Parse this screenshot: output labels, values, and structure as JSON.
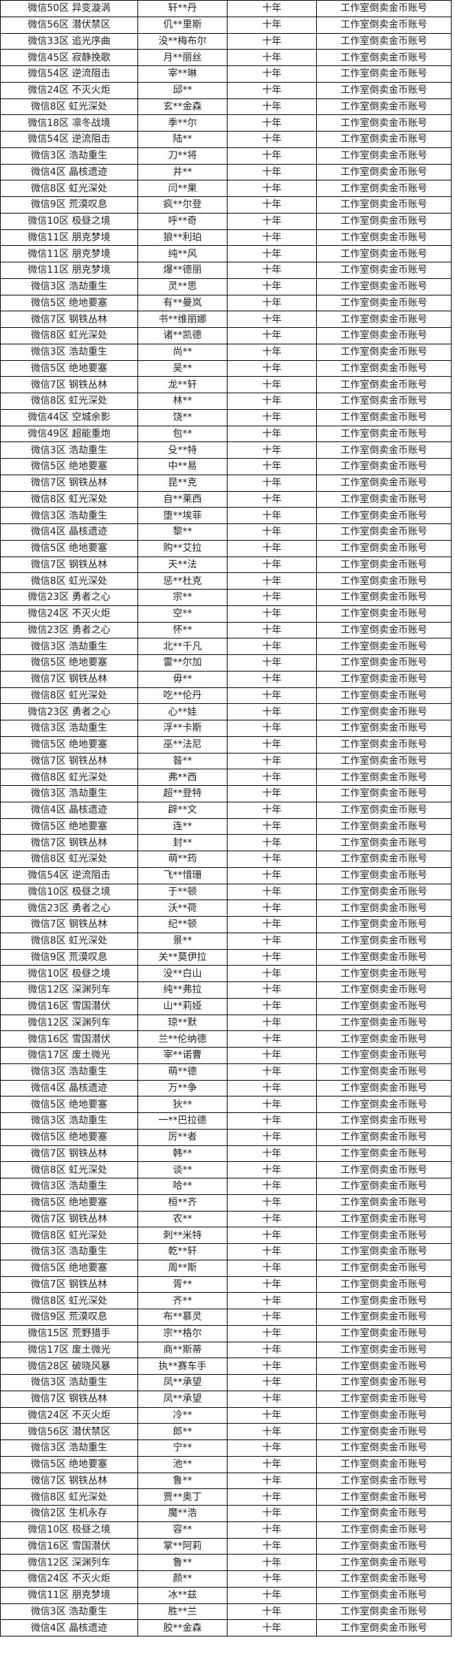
{
  "columns_defaults": {
    "duration": "十年",
    "reason": "工作室倒卖金币账号"
  },
  "rows": [
    [
      "微信50区 异变漩涡",
      "轩**丹"
    ],
    [
      "微信56区 潜伏禁区",
      "仉**里斯"
    ],
    [
      "微信33区 追光序曲",
      "没**梅布尔"
    ],
    [
      "微信45区 寂静挽歌",
      "月**丽丝"
    ],
    [
      "微信54区 逆流阻击",
      "宰**琳"
    ],
    [
      "微信24区 不灭火炬",
      "邱**"
    ],
    [
      "微信8区 虹光深处",
      "玄**金森"
    ],
    [
      "微信18区 凛冬战境",
      "季**尔"
    ],
    [
      "微信54区 逆流阻击",
      "陆**"
    ],
    [
      "微信3区 浩劫重生",
      "刀**将"
    ],
    [
      "微信4区 晶核遗迹",
      "井**"
    ],
    [
      "微信8区 虹光深处",
      "闫**果"
    ],
    [
      "微信9区 荒漠叹息",
      "疯**尔登"
    ],
    [
      "微信10区 极昼之境",
      "呼**奇"
    ],
    [
      "微信11区 朋克梦境",
      "狼**利珀"
    ],
    [
      "微信11区 朋克梦境",
      "纯**风"
    ],
    [
      "微信11区 朋克梦境",
      "爆**德丽"
    ],
    [
      "微信3区 浩劫重生",
      "灵**思"
    ],
    [
      "微信5区 绝地要塞",
      "有**曼岚"
    ],
    [
      "微信7区 钢铁丛林",
      "书**维丽娜"
    ],
    [
      "微信8区 虹光深处",
      "诸**凯德"
    ],
    [
      "微信3区 浩劫重生",
      "尚**"
    ],
    [
      "微信5区 绝地要塞",
      "吴**"
    ],
    [
      "微信7区 钢铁丛林",
      "龙**轩"
    ],
    [
      "微信8区 虹光深处",
      "林**"
    ],
    [
      "微信44区 空城余影",
      "饶**"
    ],
    [
      "微信49区 超能重炮",
      "包**"
    ],
    [
      "微信3区 浩劫重生",
      "殳**特"
    ],
    [
      "微信5区 绝地要塞",
      "中**易"
    ],
    [
      "微信7区 钢铁丛林",
      "昆**克"
    ],
    [
      "微信8区 虹光深处",
      "自**莱西"
    ],
    [
      "微信3区 浩劫重生",
      "堕**埃菲"
    ],
    [
      "微信4区 晶核遗迹",
      "黎**"
    ],
    [
      "微信5区 绝地要塞",
      "购**艾拉"
    ],
    [
      "微信7区 钢铁丛林",
      "天**法"
    ],
    [
      "微信8区 虹光深处",
      "惩**杜克"
    ],
    [
      "微信23区 勇者之心",
      "宗**"
    ],
    [
      "微信24区 不灭火炬",
      "空**"
    ],
    [
      "微信23区 勇者之心",
      "怀**"
    ],
    [
      "微信3区 浩劫重生",
      "北**千凡"
    ],
    [
      "微信5区 绝地要塞",
      "雷**尔加"
    ],
    [
      "微信7区 钢铁丛林",
      "毋**"
    ],
    [
      "微信8区 虹光深处",
      "吃**伦丹"
    ],
    [
      "微信23区 勇者之心",
      "心**娃"
    ],
    [
      "微信3区 浩劫重生",
      "浮**卡斯"
    ],
    [
      "微信5区 绝地要塞",
      "巫**法尼"
    ],
    [
      "微信7区 钢铁丛林",
      "昝**"
    ],
    [
      "微信8区 虹光深处",
      "弗**西"
    ],
    [
      "微信3区 浩劫重生",
      "超**登特"
    ],
    [
      "微信4区 晶核遗迹",
      "辟**文"
    ],
    [
      "微信5区 绝地要塞",
      "连**"
    ],
    [
      "微信7区 钢铁丛林",
      "封**"
    ],
    [
      "微信8区 虹光深处",
      "萌**筠"
    ],
    [
      "微信54区 逆流阻击",
      "飞**惜珊"
    ],
    [
      "微信10区 极昼之境",
      "于**顿"
    ],
    [
      "微信23区 勇者之心",
      "沃**荷"
    ],
    [
      "微信7区 钢铁丛林",
      "纪**顿"
    ],
    [
      "微信8区 虹光深处",
      "景**"
    ],
    [
      "微信9区 荒漠叹息",
      "关**莫伊拉"
    ],
    [
      "微信10区 极昼之境",
      "没**白山"
    ],
    [
      "微信12区 深渊列车",
      "纯**弗拉"
    ],
    [
      "微信16区 雪国潜伏",
      "山**莉娅"
    ],
    [
      "微信12区 深渊列车",
      "琼**默"
    ],
    [
      "微信16区 雪国潜伏",
      "兰**伦纳德"
    ],
    [
      "微信17区 废土微光",
      "宰**诺曹"
    ],
    [
      "微信3区 浩劫重生",
      "萌**德"
    ],
    [
      "微信4区 晶核遗迹",
      "万**争"
    ],
    [
      "微信5区 绝地要塞",
      "狄**"
    ],
    [
      "微信3区 浩劫重生",
      "一**巴拉德"
    ],
    [
      "微信5区 绝地要塞",
      "厉**者"
    ],
    [
      "微信7区 钢铁丛林",
      "韩**"
    ],
    [
      "微信8区 虹光深处",
      "谈**"
    ],
    [
      "微信3区 浩劫重生",
      "哈**"
    ],
    [
      "微信5区 绝地要塞",
      "桓**齐"
    ],
    [
      "微信7区 钢铁丛林",
      "农**"
    ],
    [
      "微信8区 虹光深处",
      "刺**米特"
    ],
    [
      "微信3区 浩劫重生",
      "乾**轩"
    ],
    [
      "微信5区 绝地要塞",
      "周**斯"
    ],
    [
      "微信7区 钢铁丛林",
      "胥**"
    ],
    [
      "微信8区 虹光深处",
      "齐**"
    ],
    [
      "微信9区 荒漠叹息",
      "布**慕灵"
    ],
    [
      "微信15区 荒野猎手",
      "宗**格尔"
    ],
    [
      "微信17区 废土微光",
      "商**斯蒂"
    ],
    [
      "微信28区 破晓风暴",
      "执**赛车手"
    ],
    [
      "微信3区 浩劫重生",
      "凤**承望"
    ],
    [
      "微信7区 钢铁丛林",
      "凤**承望"
    ],
    [
      "微信24区 不灭火炬",
      "冷**"
    ],
    [
      "微信56区 潜伏禁区",
      "郎**"
    ],
    [
      "微信3区 浩劫重生",
      "宁**"
    ],
    [
      "微信5区 绝地要塞",
      "池**"
    ],
    [
      "微信7区 钢铁丛林",
      "鲁**"
    ],
    [
      "微信8区 虹光深处",
      "贾**奥丁"
    ],
    [
      "微信2区 生机永存",
      "魔**浩"
    ],
    [
      "微信10区 极昼之境",
      "容**"
    ],
    [
      "微信16区 雪国潜伏",
      "掌**阿莉"
    ],
    [
      "微信12区 深渊列车",
      "鲁**"
    ],
    [
      "微信24区 不灭火炬",
      "颜**"
    ],
    [
      "微信11区 朋克梦境",
      "冰**兹"
    ],
    [
      "微信3区 浩劫重生",
      "胜**兰"
    ],
    [
      "微信4区 晶核遗迹",
      "胶**金森"
    ]
  ]
}
